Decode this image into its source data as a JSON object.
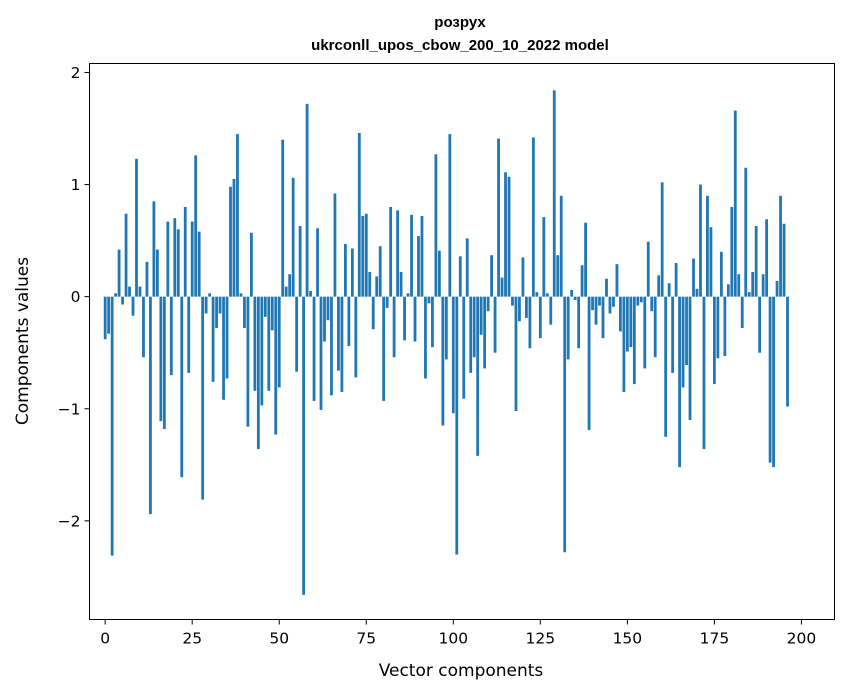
{
  "chart_data": {
    "type": "bar",
    "title_line1": "розрух",
    "title_line2": "ukrconll_upos_cbow_200_10_2022 model",
    "xlabel": "Vector components",
    "ylabel": "Components values",
    "xlim": [
      -4.5,
      209.5
    ],
    "ylim": [
      -2.88,
      2.08
    ],
    "xticks": [
      0,
      25,
      50,
      75,
      100,
      125,
      150,
      175,
      200
    ],
    "yticks": [
      2,
      1,
      0,
      -1,
      -2
    ],
    "ytick_labels": [
      "2",
      "1",
      "0",
      "−1",
      "−2"
    ],
    "bar_color": "#1f77b4",
    "grid": false,
    "values": [
      -0.38,
      -0.33,
      -2.31,
      0.03,
      0.42,
      -0.07,
      0.74,
      0.09,
      -0.17,
      1.23,
      0.09,
      -0.54,
      0.31,
      -1.94,
      0.85,
      0.42,
      -1.11,
      -1.18,
      0.67,
      -0.7,
      0.7,
      0.6,
      -1.61,
      0.8,
      -0.68,
      0.67,
      1.26,
      0.58,
      -1.81,
      -0.15,
      0.03,
      -0.76,
      -0.28,
      -0.15,
      -0.92,
      -0.73,
      0.98,
      1.05,
      1.45,
      0.03,
      -0.28,
      -1.16,
      0.57,
      -0.84,
      -1.36,
      -0.97,
      -0.18,
      -0.84,
      -0.3,
      -1.23,
      -0.81,
      1.4,
      0.09,
      0.2,
      1.06,
      -0.67,
      0.63,
      -2.66,
      1.72,
      0.05,
      -0.93,
      0.61,
      -1.01,
      -0.4,
      -0.21,
      -0.88,
      0.92,
      -0.66,
      -0.85,
      0.47,
      -0.44,
      0.43,
      -0.72,
      1.46,
      0.72,
      0.74,
      0.22,
      -0.29,
      0.18,
      0.45,
      -0.93,
      -0.1,
      0.8,
      -0.54,
      0.77,
      0.22,
      -0.39,
      0.03,
      0.73,
      -0.4,
      0.54,
      0.72,
      -0.73,
      -0.06,
      -0.45,
      1.27,
      0.41,
      -1.15,
      -0.56,
      1.45,
      -1.04,
      -2.3,
      0.36,
      -0.91,
      0.52,
      -0.68,
      -0.54,
      -1.42,
      -0.34,
      -0.64,
      -0.13,
      0.37,
      -0.5,
      1.41,
      0.17,
      1.11,
      1.07,
      -0.08,
      -1.02,
      -0.22,
      0.35,
      -0.19,
      -0.46,
      1.42,
      0.04,
      -0.37,
      0.71,
      0.03,
      -0.25,
      1.84,
      0.37,
      0.9,
      -2.28,
      -0.56,
      0.06,
      -0.03,
      -0.46,
      0.28,
      0.66,
      -1.19,
      -0.12,
      -0.25,
      -0.08,
      -0.37,
      0.16,
      -0.15,
      -0.09,
      0.29,
      -0.31,
      -0.85,
      -0.49,
      -0.45,
      -0.78,
      -0.08,
      -0.05,
      -0.64,
      0.49,
      -0.13,
      -0.54,
      0.19,
      1.02,
      -1.25,
      0.12,
      -0.68,
      0.3,
      -1.52,
      -0.81,
      -0.61,
      -1.1,
      0.34,
      0.07,
      1.0,
      -1.36,
      0.9,
      0.62,
      -0.78,
      -0.55,
      0.4,
      -0.53,
      0.11,
      0.8,
      1.66,
      0.2,
      -0.28,
      1.15,
      0.04,
      0.22,
      0.63,
      -0.5,
      0.2,
      0.69,
      -1.48,
      -1.52,
      0.14,
      0.9,
      0.65,
      -0.98
    ]
  }
}
